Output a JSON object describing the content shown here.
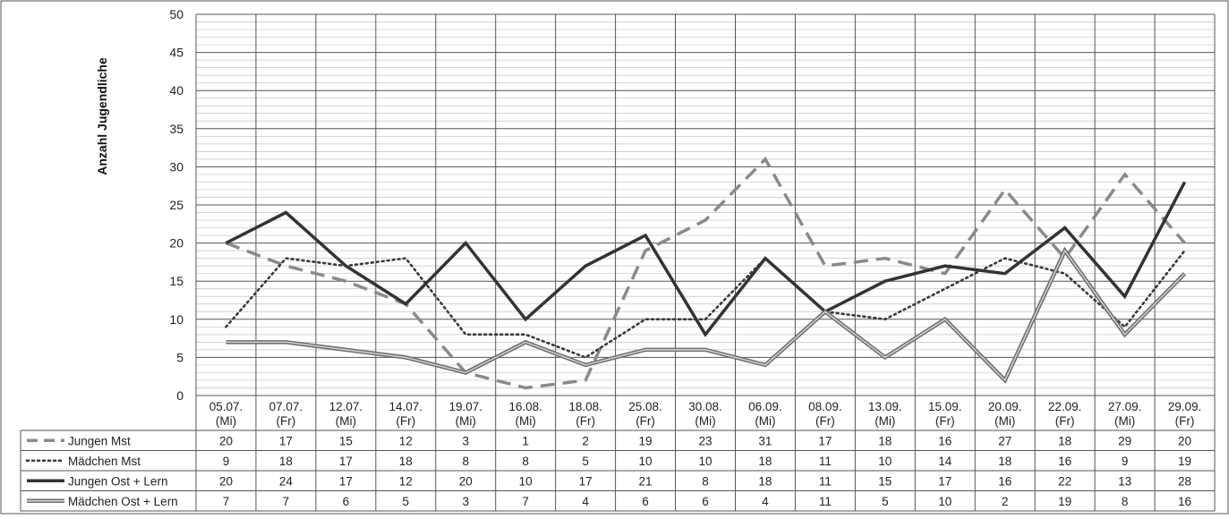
{
  "chart_data": {
    "type": "line",
    "ylabel": "Anzahl Jugendliche",
    "ylim": [
      0,
      50
    ],
    "ytick_step": 5,
    "grid": true,
    "categories": [
      [
        "05.07.",
        "(Mi)"
      ],
      [
        "07.07.",
        "(Fr)"
      ],
      [
        "12.07.",
        "(Mi)"
      ],
      [
        "14.07.",
        "(Fr)"
      ],
      [
        "19.07.",
        "(Mi)"
      ],
      [
        "16.08.",
        "(Mi)"
      ],
      [
        "18.08.",
        "(Fr)"
      ],
      [
        "25.08.",
        "(Fr)"
      ],
      [
        "30.08.",
        "(Mi)"
      ],
      [
        "06.09.",
        "(Mi)"
      ],
      [
        "08.09.",
        "(Fr)"
      ],
      [
        "13.09.",
        "(Mi)"
      ],
      [
        "15.09.",
        "(Fr)"
      ],
      [
        "20.09.",
        "(Mi)"
      ],
      [
        "22.09.",
        "(Fr)"
      ],
      [
        "27.09.",
        "(Mi)"
      ],
      [
        "29.09.",
        "(Fr)"
      ]
    ],
    "series": [
      {
        "name": "Jungen Mst",
        "style": "dashed",
        "color": "#8a8a8a",
        "values": [
          20,
          17,
          15,
          12,
          3,
          1,
          2,
          19,
          23,
          31,
          17,
          18,
          16,
          27,
          18,
          29,
          20
        ]
      },
      {
        "name": "Mädchen Mst",
        "style": "dotted",
        "color": "#3a3a3a",
        "values": [
          9,
          18,
          17,
          18,
          8,
          8,
          5,
          10,
          10,
          18,
          11,
          10,
          14,
          18,
          16,
          9,
          19
        ]
      },
      {
        "name": "Jungen Ost + Lern",
        "style": "solid",
        "color": "#333333",
        "values": [
          20,
          24,
          17,
          12,
          20,
          10,
          17,
          21,
          8,
          18,
          11,
          15,
          17,
          16,
          22,
          13,
          28
        ]
      },
      {
        "name": "Mädchen Ost + Lern",
        "style": "double",
        "color": "#777777",
        "values": [
          7,
          7,
          6,
          5,
          3,
          7,
          4,
          6,
          6,
          4,
          11,
          5,
          10,
          2,
          19,
          8,
          16
        ]
      }
    ]
  }
}
